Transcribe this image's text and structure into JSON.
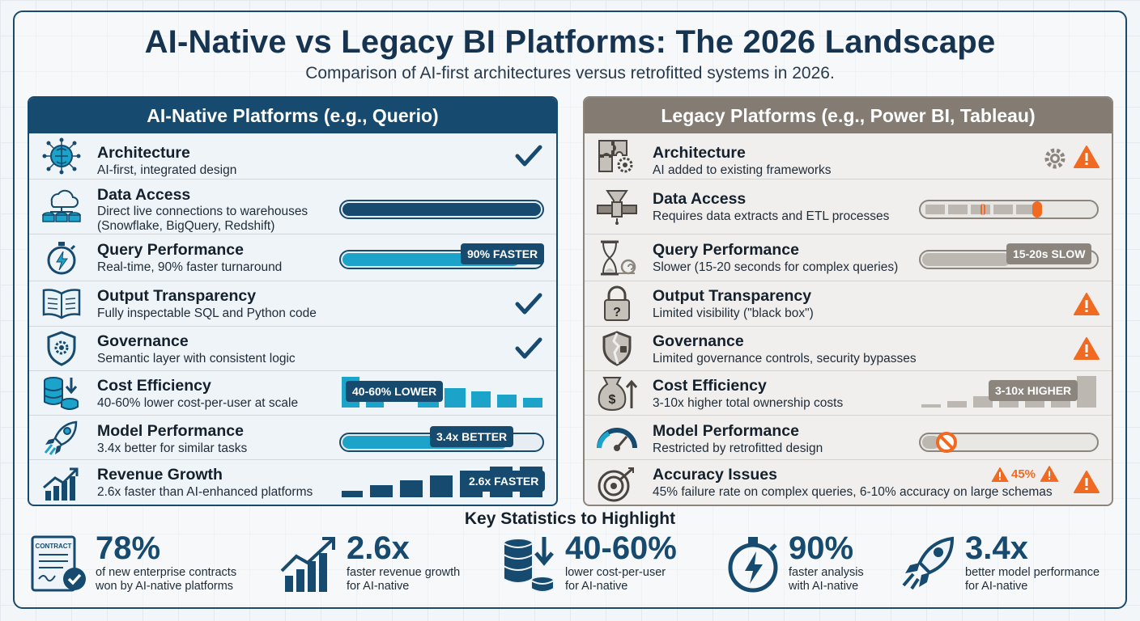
{
  "title": "AI-Native vs Legacy BI Platforms: The 2026 Landscape",
  "subtitle": "Comparison of AI-first architectures versus retrofitted systems in 2026.",
  "colors": {
    "native": "#164a6e",
    "native_accent": "#1ba3c9",
    "legacy": "#847c73",
    "warning": "#f06a22"
  },
  "native": {
    "header": "AI-Native Platforms (e.g., Querio)",
    "rows": [
      {
        "title": "Architecture",
        "desc": [
          "AI-first, integrated design"
        ],
        "icon": "brain-network-icon",
        "indicator": "check"
      },
      {
        "title": "Data Access",
        "desc": [
          "Direct live connections to warehouses",
          "(Snowflake, BigQuery, Redshift)"
        ],
        "icon": "cloud-database-icon",
        "indicator": "full-bar",
        "level": 1.0
      },
      {
        "title": "Query Performance",
        "desc": [
          "Real-time, 90% faster turnaround"
        ],
        "icon": "stopwatch-lightning-icon",
        "indicator": "bar",
        "level": 0.9,
        "badge": "90% FASTER"
      },
      {
        "title": "Output Transparency",
        "desc": [
          "Fully inspectable SQL and Python code"
        ],
        "icon": "open-book-icon",
        "indicator": "check"
      },
      {
        "title": "Governance",
        "desc": [
          "Semantic layer with consistent logic"
        ],
        "icon": "shield-gear-icon",
        "indicator": "check"
      },
      {
        "title": "Cost Efficiency",
        "desc": [
          "40-60% lower cost-per-user at scale"
        ],
        "icon": "coin-stack-down-icon",
        "indicator": "descending-bars",
        "badge": "40-60% LOWER"
      },
      {
        "title": "Model Performance",
        "desc": [
          "3.4x better for similar tasks"
        ],
        "icon": "rocket-icon",
        "indicator": "bar",
        "level": 0.85,
        "badge": "3.4x BETTER"
      },
      {
        "title": "Revenue Growth",
        "desc": [
          "2.6x faster than AI-enhanced platforms"
        ],
        "icon": "growth-chart-icon",
        "indicator": "ascending-bars",
        "badge": "2.6x FASTER"
      }
    ]
  },
  "legacy": {
    "header": "Legacy Platforms (e.g., Power BI, Tableau)",
    "rows": [
      {
        "title": "Architecture",
        "desc": [
          "AI added to existing frameworks"
        ],
        "icon": "puzzle-gear-icon",
        "indicator": "gear-warning"
      },
      {
        "title": "Data Access",
        "desc": [
          "Requires data extracts and ETL processes"
        ],
        "icon": "pipeline-funnel-icon",
        "indicator": "segmented-bar"
      },
      {
        "title": "Query Performance",
        "desc": [
          "Slower (15-20 seconds for complex queries)"
        ],
        "icon": "hourglass-snail-icon",
        "indicator": "bar",
        "badge": "15-20s SLOW"
      },
      {
        "title": "Output Transparency",
        "desc": [
          "Limited visibility (\"black box\")"
        ],
        "icon": "padlock-question-icon",
        "indicator": "warning"
      },
      {
        "title": "Governance",
        "desc": [
          "Limited governance controls, security bypasses"
        ],
        "icon": "cracked-shield-icon",
        "indicator": "warning"
      },
      {
        "title": "Cost Efficiency",
        "desc": [
          "3-10x higher total ownership costs"
        ],
        "icon": "money-bag-up-icon",
        "indicator": "ascending-bars",
        "badge": "3-10x HIGHER"
      },
      {
        "title": "Model Performance",
        "desc": [
          "Restricted by retrofitted design"
        ],
        "icon": "gauge-icon",
        "indicator": "blocked-bar"
      },
      {
        "title": "Accuracy Issues",
        "desc": [
          "45% failure rate on complex queries, 6-10% accuracy on large schemas"
        ],
        "icon": "target-miss-icon",
        "indicator": "warning",
        "badge": "45%"
      }
    ]
  },
  "stats": {
    "heading": "Key Statistics to Highlight",
    "items": [
      {
        "value": "78%",
        "label": [
          "of new enterprise contracts",
          "won by AI-native platforms"
        ],
        "icon": "contract-check-icon",
        "icon_text": "CONTRACT"
      },
      {
        "value": "2.6x",
        "label": [
          "faster revenue growth",
          "for AI-native"
        ],
        "icon": "growth-chart-icon"
      },
      {
        "value": "40-60%",
        "label": [
          "lower cost-per-user",
          "for AI-native"
        ],
        "icon": "coin-stack-down-icon"
      },
      {
        "value": "90%",
        "label": [
          "faster analysis",
          "with AI-native"
        ],
        "icon": "stopwatch-lightning-icon"
      },
      {
        "value": "3.4x",
        "label": [
          "better model performance",
          "for AI-native"
        ],
        "icon": "rocket-icon"
      }
    ]
  }
}
